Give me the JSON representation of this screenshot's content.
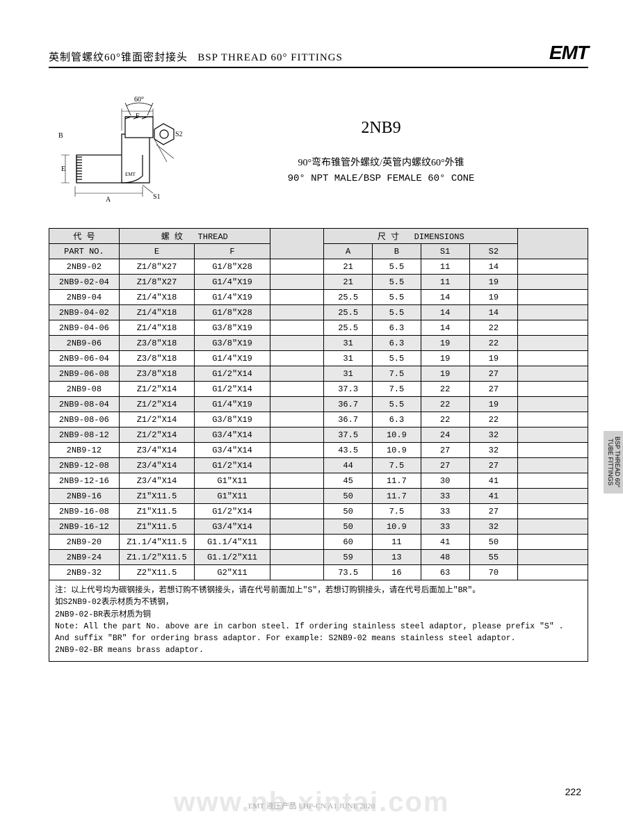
{
  "header": {
    "title_cn": "英制管螺纹60°锥面密封接头",
    "title_en": "BSP THREAD 60° FITTINGS",
    "brand": "EMT"
  },
  "diagram": {
    "labels": {
      "angle": "60°",
      "F": "F",
      "B": "B",
      "E": "E",
      "A": "A",
      "S1": "S1",
      "S2": "S2",
      "emt": "EMT"
    }
  },
  "product": {
    "code": "2NB9",
    "desc_cn": "90°弯布锥管外螺纹/英管内螺纹60°外锥",
    "desc_en": "90° NPT MALE/BSP FEMALE 60° CONE"
  },
  "table": {
    "headers": {
      "part_cn": "代 号",
      "part_en": "PART NO.",
      "thread_cn": "螺 纹",
      "thread_en": "THREAD",
      "dim_cn": "尺 寸",
      "dim_en": "DIMENSIONS",
      "E": "E",
      "F": "F",
      "A": "A",
      "B": "B",
      "S1": "S1",
      "S2": "S2"
    },
    "rows": [
      {
        "pn": "2NB9-02",
        "e": "Z1/8\"X27",
        "f": "G1/8\"X28",
        "a": "21",
        "b": "5.5",
        "s1": "11",
        "s2": "14"
      },
      {
        "pn": "2NB9-02-04",
        "e": "Z1/8\"X27",
        "f": "G1/4\"X19",
        "a": "21",
        "b": "5.5",
        "s1": "11",
        "s2": "19"
      },
      {
        "pn": "2NB9-04",
        "e": "Z1/4\"X18",
        "f": "G1/4\"X19",
        "a": "25.5",
        "b": "5.5",
        "s1": "14",
        "s2": "19"
      },
      {
        "pn": "2NB9-04-02",
        "e": "Z1/4\"X18",
        "f": "G1/8\"X28",
        "a": "25.5",
        "b": "5.5",
        "s1": "14",
        "s2": "14"
      },
      {
        "pn": "2NB9-04-06",
        "e": "Z1/4\"X18",
        "f": "G3/8\"X19",
        "a": "25.5",
        "b": "6.3",
        "s1": "14",
        "s2": "22"
      },
      {
        "pn": "2NB9-06",
        "e": "Z3/8\"X18",
        "f": "G3/8\"X19",
        "a": "31",
        "b": "6.3",
        "s1": "19",
        "s2": "22"
      },
      {
        "pn": "2NB9-06-04",
        "e": "Z3/8\"X18",
        "f": "G1/4\"X19",
        "a": "31",
        "b": "5.5",
        "s1": "19",
        "s2": "19"
      },
      {
        "pn": "2NB9-06-08",
        "e": "Z3/8\"X18",
        "f": "G1/2\"X14",
        "a": "31",
        "b": "7.5",
        "s1": "19",
        "s2": "27"
      },
      {
        "pn": "2NB9-08",
        "e": "Z1/2\"X14",
        "f": "G1/2\"X14",
        "a": "37.3",
        "b": "7.5",
        "s1": "22",
        "s2": "27"
      },
      {
        "pn": "2NB9-08-04",
        "e": "Z1/2\"X14",
        "f": "G1/4\"X19",
        "a": "36.7",
        "b": "5.5",
        "s1": "22",
        "s2": "19"
      },
      {
        "pn": "2NB9-08-06",
        "e": "Z1/2\"X14",
        "f": "G3/8\"X19",
        "a": "36.7",
        "b": "6.3",
        "s1": "22",
        "s2": "22"
      },
      {
        "pn": "2NB9-08-12",
        "e": "Z1/2\"X14",
        "f": "G3/4\"X14",
        "a": "37.5",
        "b": "10.9",
        "s1": "24",
        "s2": "32"
      },
      {
        "pn": "2NB9-12",
        "e": "Z3/4\"X14",
        "f": "G3/4\"X14",
        "a": "43.5",
        "b": "10.9",
        "s1": "27",
        "s2": "32"
      },
      {
        "pn": "2NB9-12-08",
        "e": "Z3/4\"X14",
        "f": "G1/2\"X14",
        "a": "44",
        "b": "7.5",
        "s1": "27",
        "s2": "27"
      },
      {
        "pn": "2NB9-12-16",
        "e": "Z3/4\"X14",
        "f": "G1\"X11",
        "a": "45",
        "b": "11.7",
        "s1": "30",
        "s2": "41"
      },
      {
        "pn": "2NB9-16",
        "e": "Z1\"X11.5",
        "f": "G1\"X11",
        "a": "50",
        "b": "11.7",
        "s1": "33",
        "s2": "41"
      },
      {
        "pn": "2NB9-16-08",
        "e": "Z1\"X11.5",
        "f": "G1/2\"X14",
        "a": "50",
        "b": "7.5",
        "s1": "33",
        "s2": "27"
      },
      {
        "pn": "2NB9-16-12",
        "e": "Z1\"X11.5",
        "f": "G3/4\"X14",
        "a": "50",
        "b": "10.9",
        "s1": "33",
        "s2": "32"
      },
      {
        "pn": "2NB9-20",
        "e": "Z1.1/4\"X11.5",
        "f": "G1.1/4\"X11",
        "a": "60",
        "b": "11",
        "s1": "41",
        "s2": "50"
      },
      {
        "pn": "2NB9-24",
        "e": "Z1.1/2\"X11.5",
        "f": "G1.1/2\"X11",
        "a": "59",
        "b": "13",
        "s1": "48",
        "s2": "55"
      },
      {
        "pn": "2NB9-32",
        "e": "Z2\"X11.5",
        "f": "G2\"X11",
        "a": "73.5",
        "b": "16",
        "s1": "63",
        "s2": "70"
      }
    ],
    "note": "注：以上代号均为碳钢接头，若想订购不锈钢接头，请在代号前面加上\"S\"，若想订购铜接头，请在代号后面加上\"BR\"。\n如S2NB9-02表示材质为不锈钢，\n2NB9-02-BR表示材质为铜\nNote: All the part No. above are in carbon steel. If ordering stainless steel adaptor, please prefix \"S\" .\nAnd suffix \"BR\" for ordering brass adaptor. For example: S2NB9-02  means stainless steel adaptor.\n2NB9-02-BR means brass adaptor."
  },
  "side_tab": "BSP THREAD 60°\nTUBE FITTINGS",
  "page_num": "222",
  "footer": "EMT 液压产品 EHP-CN A1 JUNE 2020",
  "watermark": "www.nb-xintai.com",
  "colwidths": {
    "pn": "13%",
    "e": "14%",
    "f": "14%",
    "gap": "10%",
    "a": "9%",
    "b": "9%",
    "s1": "9%",
    "s2": "9%",
    "end": "13%"
  }
}
